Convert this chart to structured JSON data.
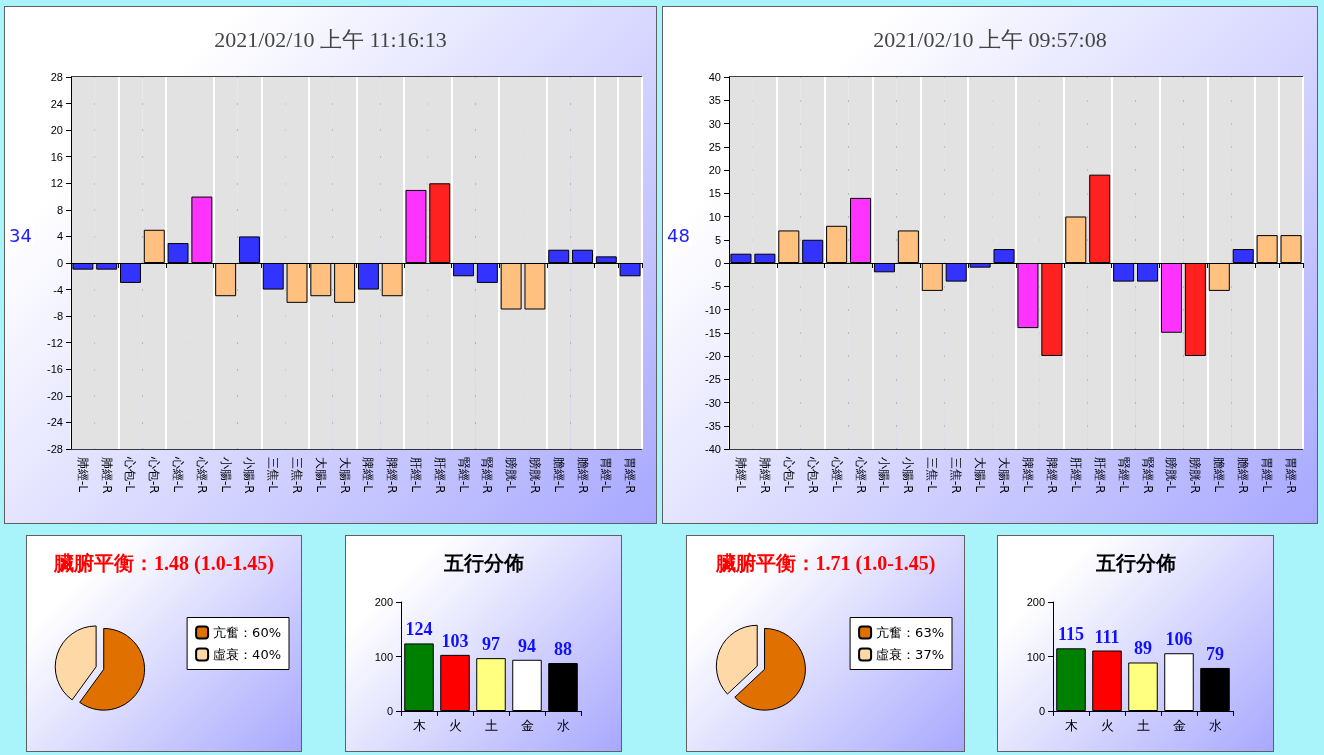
{
  "chart_data": [
    {
      "type": "bar",
      "title": "2021/02/10 上午 11:16:13",
      "categories": [
        "肺經-L",
        "肺經-R",
        "心包-L",
        "心包-R",
        "心經-L",
        "心經-R",
        "小腸-L",
        "小腸-R",
        "三焦-L",
        "三焦-R",
        "大腸-L",
        "大腸-R",
        "脾經-L",
        "脾經-R",
        "肝經-L",
        "肝經-R",
        "腎經-L",
        "腎經-R",
        "膀胱-L",
        "膀胱-R",
        "膽經-L",
        "膽經-R",
        "胃經-L",
        "胃經-R"
      ],
      "values": [
        -1,
        -1,
        -3,
        5,
        3,
        10,
        -5,
        4,
        -4,
        -6,
        -5,
        -6,
        -4,
        -5,
        11,
        12,
        -2,
        -3,
        -7,
        -7,
        2,
        2,
        1,
        -2
      ],
      "colors": [
        "#3333ff",
        "#3333ff",
        "#3333ff",
        "#ffc080",
        "#3333ff",
        "#ff33ff",
        "#ffc080",
        "#3333ff",
        "#3333ff",
        "#ffc080",
        "#ffc080",
        "#ffc080",
        "#3333ff",
        "#ffc080",
        "#ff33ff",
        "#ff2020",
        "#3333ff",
        "#3333ff",
        "#ffc080",
        "#ffc080",
        "#3333ff",
        "#3333ff",
        "#3333ff",
        "#3333ff"
      ],
      "ylim": [
        -28,
        28
      ],
      "yticks": [
        -28,
        -24,
        -20,
        -16,
        -12,
        -8,
        -4,
        0,
        4,
        8,
        12,
        16,
        20,
        24,
        28
      ],
      "grid": true,
      "annotations": [
        "34"
      ]
    },
    {
      "type": "bar",
      "title": "2021/02/10 上午 09:57:08",
      "categories": [
        "肺經-L",
        "肺經-R",
        "心包-L",
        "心包-R",
        "心經-L",
        "心經-R",
        "小腸-L",
        "小腸-R",
        "三焦-L",
        "三焦-R",
        "大腸-L",
        "大腸-R",
        "脾經-L",
        "脾經-R",
        "肝經-L",
        "肝經-R",
        "腎經-L",
        "腎經-R",
        "膀胱-L",
        "膀胱-R",
        "膽經-L",
        "膽經-R",
        "胃經-L",
        "胃經-R"
      ],
      "values": [
        2,
        2,
        7,
        5,
        8,
        14,
        -2,
        7,
        -6,
        -4,
        -1,
        3,
        -14,
        -20,
        10,
        19,
        -4,
        -4,
        -15,
        -20,
        -6,
        3,
        6,
        6
      ],
      "colors": [
        "#3333ff",
        "#3333ff",
        "#ffc080",
        "#3333ff",
        "#ffc080",
        "#ff33ff",
        "#3333ff",
        "#ffc080",
        "#ffc080",
        "#3333ff",
        "#3333ff",
        "#3333ff",
        "#ff33ff",
        "#ff2020",
        "#ffc080",
        "#ff2020",
        "#3333ff",
        "#3333ff",
        "#ff33ff",
        "#ff2020",
        "#ffc080",
        "#3333ff",
        "#ffc080",
        "#ffc080"
      ],
      "ylim": [
        -40,
        40
      ],
      "yticks": [
        -40,
        -35,
        -30,
        -25,
        -20,
        -15,
        -10,
        -5,
        0,
        5,
        10,
        15,
        20,
        25,
        30,
        35,
        40
      ],
      "grid": true,
      "annotations": [
        "48"
      ]
    },
    {
      "type": "pie",
      "title": "臟腑平衡：1.48 (1.0-1.45)",
      "categories": [
        "亢奮：60%",
        "虛衰：40%"
      ],
      "values": [
        60,
        40
      ],
      "colors": [
        "#e07000",
        "#ffd8a8"
      ],
      "legend": "right"
    },
    {
      "type": "bar",
      "title": "五行分佈",
      "categories": [
        "木",
        "火",
        "土",
        "金",
        "水"
      ],
      "values": [
        124,
        103,
        97,
        94,
        88
      ],
      "colors": [
        "#008000",
        "#ff0000",
        "#ffff80",
        "#ffffff",
        "#000000"
      ],
      "ylim": [
        0,
        200
      ],
      "yticks": [
        0,
        100,
        200
      ],
      "data_labels": true
    },
    {
      "type": "pie",
      "title": "臟腑平衡：1.71 (1.0-1.45)",
      "categories": [
        "亢奮：63%",
        "虛衰：37%"
      ],
      "values": [
        63,
        37
      ],
      "colors": [
        "#e07000",
        "#ffd8a8"
      ],
      "legend": "right"
    },
    {
      "type": "bar",
      "title": "五行分佈",
      "categories": [
        "木",
        "火",
        "土",
        "金",
        "水"
      ],
      "values": [
        115,
        111,
        89,
        106,
        79
      ],
      "colors": [
        "#008000",
        "#ff0000",
        "#ffff80",
        "#ffffff",
        "#000000"
      ],
      "ylim": [
        0,
        200
      ],
      "yticks": [
        0,
        100,
        200
      ],
      "data_labels": true
    }
  ]
}
